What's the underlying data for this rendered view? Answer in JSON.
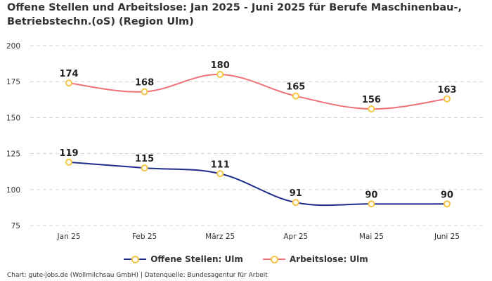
{
  "chart_data": {
    "type": "line",
    "title": "Offene Stellen und Arbeitslose: Jan 2025 - Juni 2025 für Berufe Maschinenbau-, Betriebstechn.(oS) (Region Ulm)",
    "categories": [
      "Jan 25",
      "Feb 25",
      "März 25",
      "Apr 25",
      "Mai 25",
      "Juni 25"
    ],
    "series": [
      {
        "name": "Offene Stellen: Ulm",
        "values": [
          119,
          115,
          111,
          91,
          90,
          90
        ],
        "color": "#1e2d8c"
      },
      {
        "name": "Arbeitslose: Ulm",
        "values": [
          174,
          168,
          180,
          165,
          156,
          163
        ],
        "color": "#f0707a"
      }
    ],
    "marker_color": "#f4c542",
    "ylim": [
      75,
      200
    ],
    "yticks": [
      75,
      100,
      125,
      150,
      175,
      200
    ],
    "xlabel": "",
    "ylabel": "",
    "grid": true,
    "legend_position": "bottom-center"
  },
  "footer": "Chart: gute-jobs.de (Wollmilchsau GmbH) | Datenquelle: Bundesagentur für Arbeit"
}
